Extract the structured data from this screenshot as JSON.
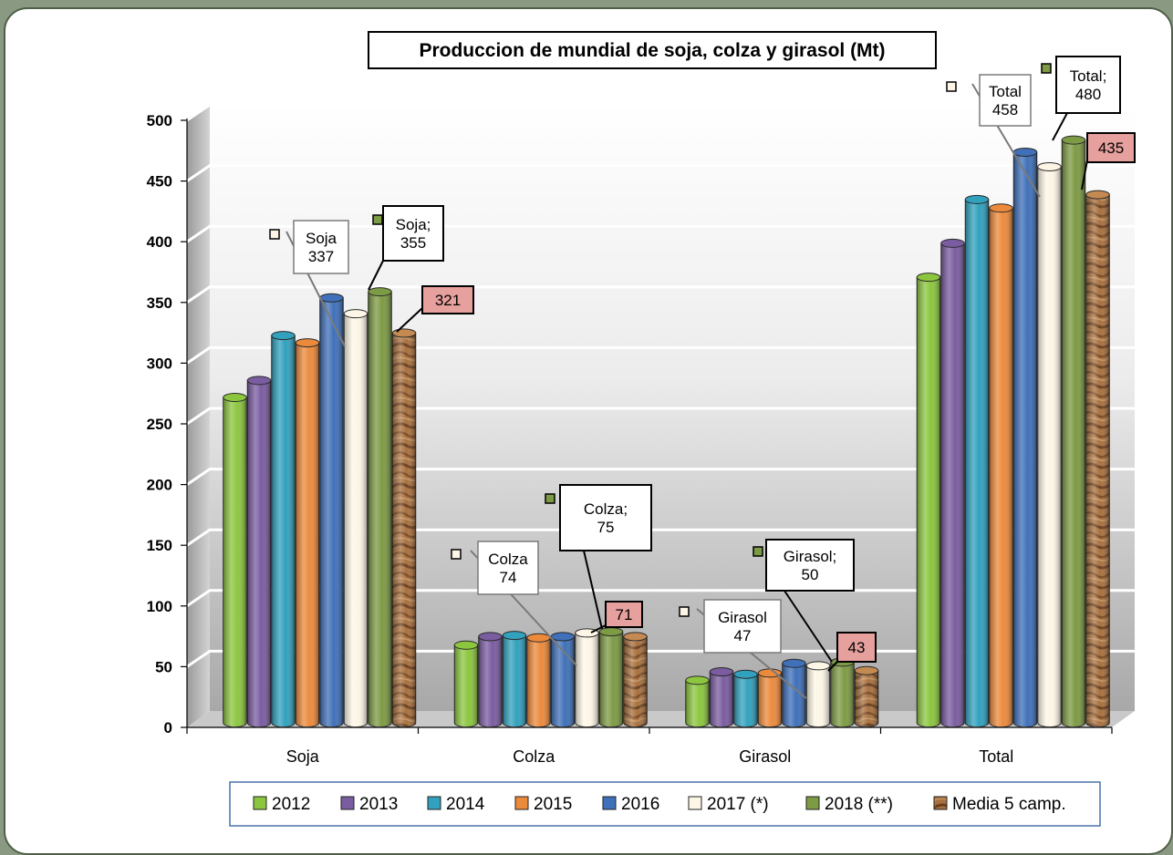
{
  "chart_data": {
    "type": "bar",
    "title": "Produccion de mundial de soja, colza y girasol (Mt)",
    "xlabel": "",
    "ylabel": "",
    "categories": [
      "Soja",
      "Colza",
      "Girasol",
      "Total"
    ],
    "ylim": [
      0,
      500
    ],
    "yticks": [
      0,
      50,
      100,
      150,
      200,
      250,
      300,
      350,
      400,
      450,
      500
    ],
    "grid": true,
    "legend_position": "bottom",
    "series": [
      {
        "name": "2012",
        "color": "#8cc63f",
        "values": [
          268,
          64,
          35,
          367
        ]
      },
      {
        "name": "2013",
        "color": "#7a5ca0",
        "values": [
          282,
          71,
          42,
          395
        ]
      },
      {
        "name": "2014",
        "color": "#31a1bd",
        "values": [
          319,
          72,
          40,
          431
        ]
      },
      {
        "name": "2015",
        "color": "#ec8a3c",
        "values": [
          313,
          70,
          41,
          424
        ]
      },
      {
        "name": "2016",
        "color": "#3f70b9",
        "values": [
          350,
          71,
          49,
          470
        ]
      },
      {
        "name": "2017 (*)",
        "color": "#fdf6e6",
        "values": [
          337,
          74,
          47,
          458
        ]
      },
      {
        "name": "2018 (**)",
        "color": "#7d9a44",
        "values": [
          355,
          75,
          50,
          480
        ]
      },
      {
        "name": "Media 5 camp.",
        "color": "#9a6234",
        "values": [
          321,
          71,
          43,
          435
        ]
      }
    ],
    "annotations": [
      {
        "lines": [
          "Soja",
          "337"
        ],
        "style": "grey"
      },
      {
        "lines": [
          "Soja;",
          "355"
        ],
        "style": "black"
      },
      {
        "lines": [
          "321"
        ],
        "style": "pink"
      },
      {
        "lines": [
          "Colza",
          "74"
        ],
        "style": "grey"
      },
      {
        "lines": [
          "Colza;",
          "75"
        ],
        "style": "black"
      },
      {
        "lines": [
          "71"
        ],
        "style": "pink"
      },
      {
        "lines": [
          "Girasol",
          "47"
        ],
        "style": "grey"
      },
      {
        "lines": [
          "Girasol;",
          "50"
        ],
        "style": "black"
      },
      {
        "lines": [
          "43"
        ],
        "style": "pink"
      },
      {
        "lines": [
          "Total",
          "458"
        ],
        "style": "grey"
      },
      {
        "lines": [
          "Total;",
          "480"
        ],
        "style": "black"
      },
      {
        "lines": [
          "435"
        ],
        "style": "pink"
      }
    ]
  }
}
